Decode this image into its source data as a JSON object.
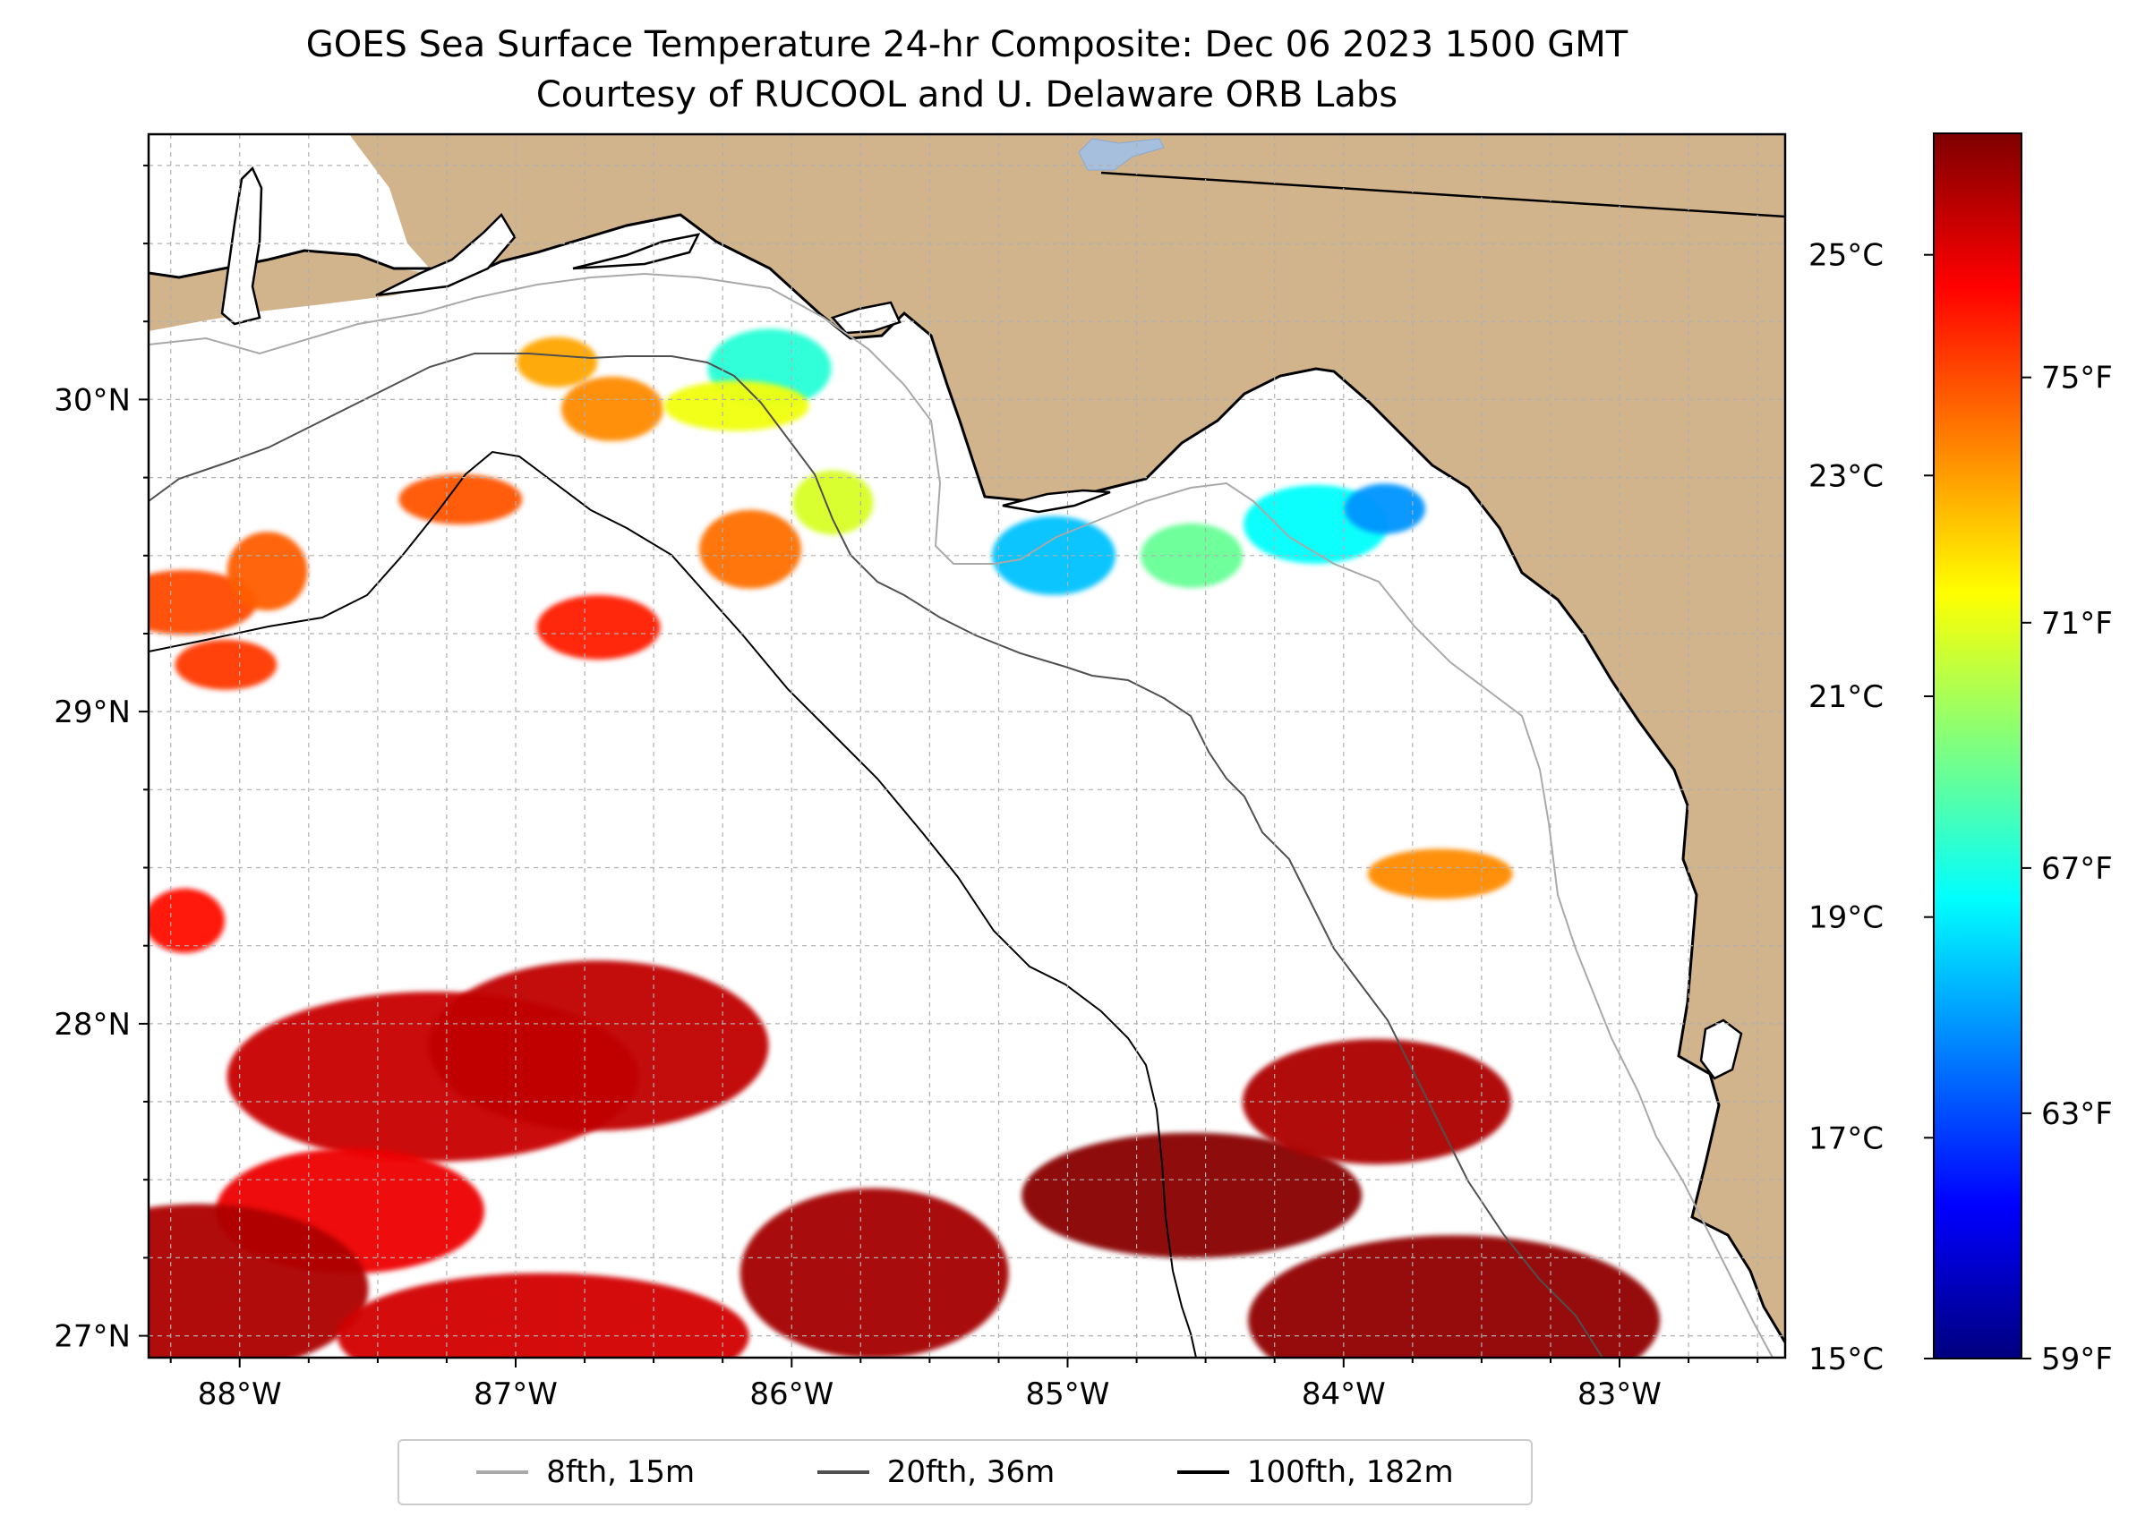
{
  "title": {
    "line1": "GOES Sea Surface Temperature 24-hr Composite: Dec 06 2023 1500 GMT",
    "line2": "Courtesy of RUCOOL and U. Delaware ORB Labs"
  },
  "map": {
    "extent": {
      "lon_min": -88.33,
      "lon_max": -82.4,
      "lat_min": 26.93,
      "lat_max": 30.85
    },
    "x_ticks": [
      {
        "lon": -88,
        "label": "88°W"
      },
      {
        "lon": -87,
        "label": "87°W"
      },
      {
        "lon": -86,
        "label": "86°W"
      },
      {
        "lon": -85,
        "label": "85°W"
      },
      {
        "lon": -84,
        "label": "84°W"
      },
      {
        "lon": -83,
        "label": "83°W"
      }
    ],
    "y_ticks": [
      {
        "lat": 30,
        "label": "30°N"
      },
      {
        "lat": 29,
        "label": "29°N"
      },
      {
        "lat": 28,
        "label": "28°N"
      },
      {
        "lat": 27,
        "label": "27°N"
      }
    ],
    "grid_step_deg": 0.25,
    "colors": {
      "land": "#D2B48C",
      "water": "#ffffff",
      "grid": "#b0b0b0"
    }
  },
  "sst_patches": [
    {
      "lon": -86.85,
      "lat": 30.12,
      "temp_c": 22.9
    },
    {
      "lon": -86.65,
      "lat": 29.97,
      "temp_c": 23.2
    },
    {
      "lon": -86.08,
      "lat": 30.1,
      "temp_c": 19.6
    },
    {
      "lon": -86.2,
      "lat": 29.98,
      "temp_c": 21.8
    },
    {
      "lon": -85.85,
      "lat": 29.67,
      "temp_c": 21.5
    },
    {
      "lon": -86.15,
      "lat": 29.52,
      "temp_c": 23.5
    },
    {
      "lon": -87.2,
      "lat": 29.68,
      "temp_c": 23.8
    },
    {
      "lon": -88.2,
      "lat": 29.35,
      "temp_c": 23.9
    },
    {
      "lon": -87.9,
      "lat": 29.45,
      "temp_c": 23.7
    },
    {
      "lon": -88.05,
      "lat": 29.15,
      "temp_c": 24.1
    },
    {
      "lon": -86.7,
      "lat": 29.27,
      "temp_c": 24.4
    },
    {
      "lon": -84.1,
      "lat": 29.6,
      "temp_c": 19.2
    },
    {
      "lon": -83.85,
      "lat": 29.65,
      "temp_c": 18.0
    },
    {
      "lon": -84.55,
      "lat": 29.5,
      "temp_c": 20.3
    },
    {
      "lon": -85.05,
      "lat": 29.5,
      "temp_c": 18.5
    },
    {
      "lon": -83.65,
      "lat": 28.48,
      "temp_c": 23.2
    },
    {
      "lon": -88.2,
      "lat": 28.33,
      "temp_c": 24.6
    },
    {
      "lon": -87.3,
      "lat": 27.83,
      "temp_c": 25.3
    },
    {
      "lon": -87.6,
      "lat": 27.4,
      "temp_c": 24.9
    },
    {
      "lon": -88.15,
      "lat": 27.15,
      "temp_c": 25.6
    },
    {
      "lon": -86.9,
      "lat": 27.0,
      "temp_c": 25.2
    },
    {
      "lon": -85.7,
      "lat": 27.2,
      "temp_c": 25.7
    },
    {
      "lon": -84.55,
      "lat": 27.45,
      "temp_c": 26.0
    },
    {
      "lon": -83.6,
      "lat": 27.05,
      "temp_c": 25.9
    },
    {
      "lon": -83.88,
      "lat": 27.75,
      "temp_c": 25.6
    },
    {
      "lon": -86.7,
      "lat": 27.93,
      "temp_c": 25.4
    }
  ],
  "colorbar": {
    "celsius_range": [
      15,
      26.1
    ],
    "celsius_ticks": [
      {
        "value": 25,
        "label": "25°C"
      },
      {
        "value": 23,
        "label": "23°C"
      },
      {
        "value": 21,
        "label": "21°C"
      },
      {
        "value": 19,
        "label": "19°C"
      },
      {
        "value": 17,
        "label": "17°C"
      },
      {
        "value": 15,
        "label": "15°C"
      }
    ],
    "fahrenheit_ticks": [
      {
        "value": 75,
        "label": "75°F"
      },
      {
        "value": 71,
        "label": "71°F"
      },
      {
        "value": 67,
        "label": "67°F"
      },
      {
        "value": 63,
        "label": "63°F"
      },
      {
        "value": 59,
        "label": "59°F"
      }
    ],
    "stops": [
      "#00007f",
      "#0000ff",
      "#007fff",
      "#00ffff",
      "#7fff7f",
      "#ffff00",
      "#ff7f00",
      "#ff0000",
      "#7f0000"
    ]
  },
  "legend": {
    "entries": [
      {
        "label": "8fth, 15m",
        "color": "#a9a9a9"
      },
      {
        "label": "20fth, 36m",
        "color": "#505050"
      },
      {
        "label": "100fth, 182m",
        "color": "#000000"
      }
    ]
  }
}
